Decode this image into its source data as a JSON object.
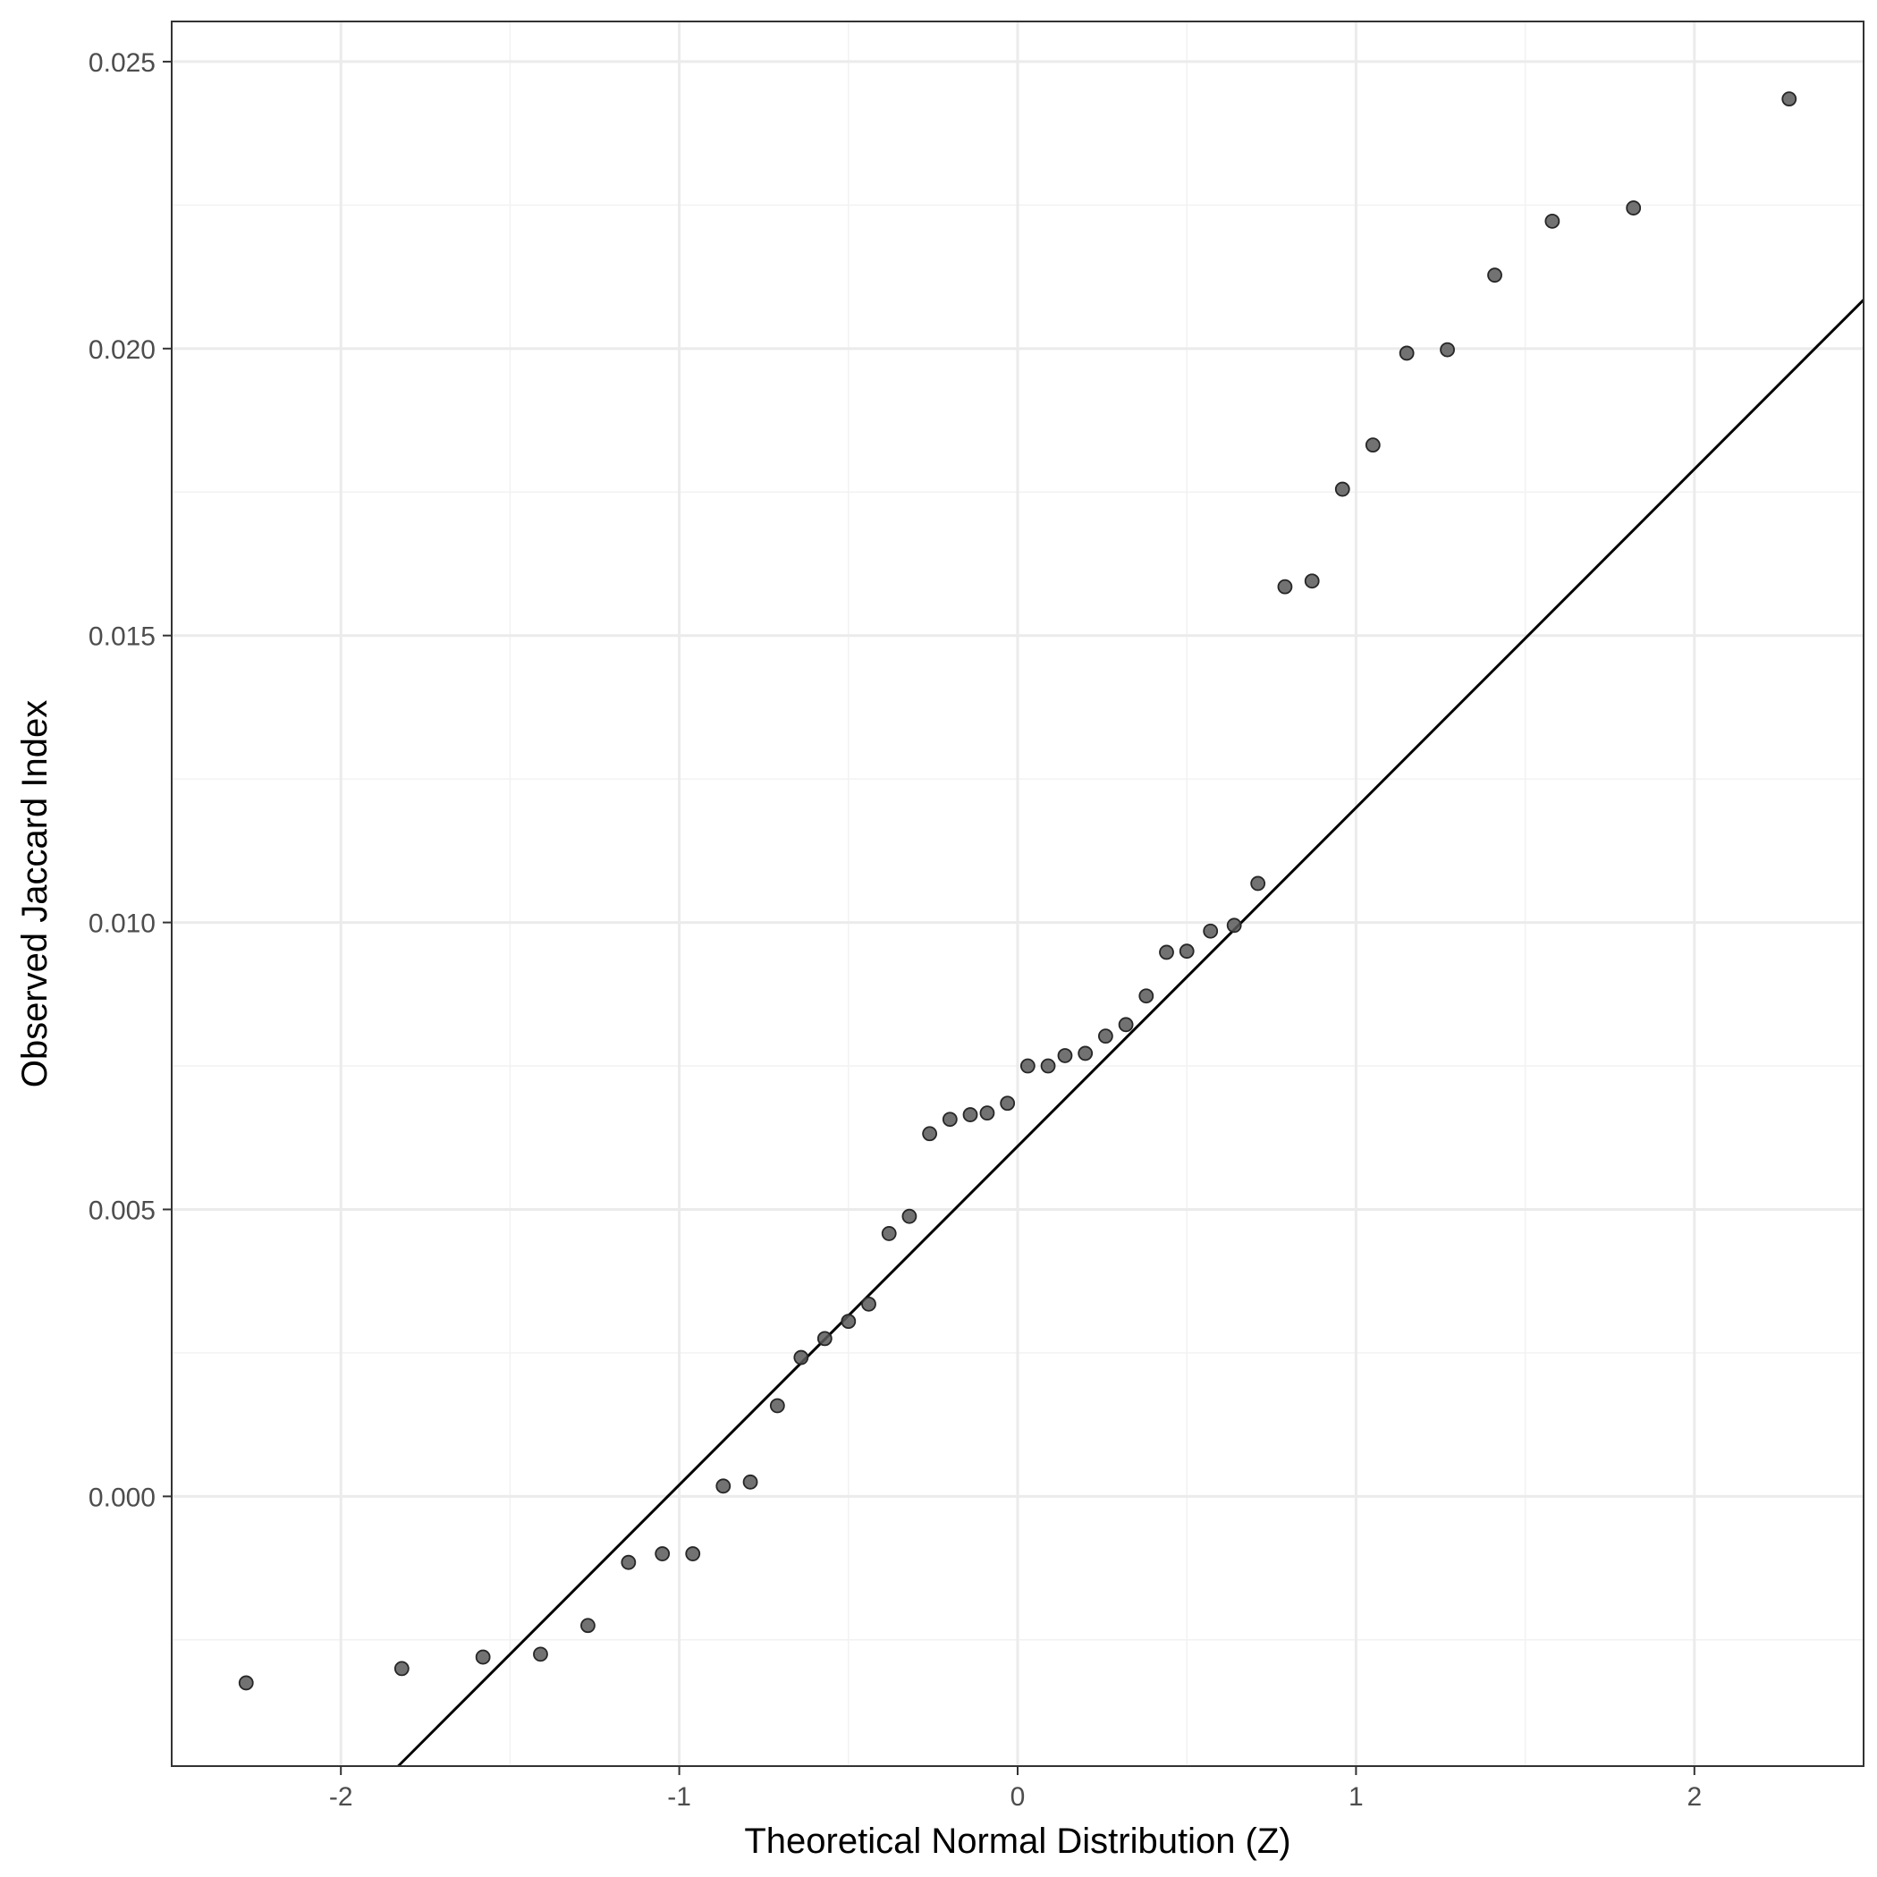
{
  "chart_data": {
    "type": "scatter",
    "title": "",
    "xlabel": "Theoretical Normal Distribution (Z)",
    "ylabel": "Observed Jaccard Index",
    "xlim": [
      -2.5,
      2.5
    ],
    "ylim": [
      -0.0047,
      0.0257
    ],
    "x_ticks": [
      -2,
      -1,
      0,
      1,
      2
    ],
    "x_tick_labels": [
      "-2",
      "-1",
      "0",
      "1",
      "2"
    ],
    "y_ticks": [
      0.0,
      0.005,
      0.01,
      0.015,
      0.02,
      0.025
    ],
    "y_tick_labels": [
      "0.000",
      "0.005",
      "0.010",
      "0.015",
      "0.020",
      "0.025"
    ],
    "grid": true,
    "legend": "none",
    "point_color": "#595959",
    "line_color": "#000000",
    "reference_line": {
      "intercept": 0.0061,
      "slope": 0.0059
    },
    "x": [
      -2.28,
      -1.82,
      -1.58,
      -1.41,
      -1.27,
      -1.15,
      -1.05,
      -0.96,
      -0.87,
      -0.79,
      -0.71,
      -0.64,
      -0.57,
      -0.5,
      -0.44,
      -0.38,
      -0.32,
      -0.26,
      -0.2,
      -0.14,
      -0.09,
      -0.03,
      0.03,
      0.09,
      0.14,
      0.2,
      0.26,
      0.32,
      0.38,
      0.44,
      0.5,
      0.57,
      0.64,
      0.71,
      0.79,
      0.87,
      0.96,
      1.05,
      1.15,
      1.27,
      1.41,
      1.58,
      1.82,
      2.28
    ],
    "y": [
      -0.00325,
      -0.003,
      -0.0028,
      -0.00275,
      -0.00225,
      -0.00115,
      -0.001,
      -0.001,
      0.00018,
      0.00025,
      0.00158,
      0.00242,
      0.00275,
      0.00305,
      0.00335,
      0.00458,
      0.00488,
      0.00632,
      0.00657,
      0.00665,
      0.00668,
      0.00685,
      0.0075,
      0.0075,
      0.00768,
      0.00772,
      0.00802,
      0.00822,
      0.00872,
      0.00948,
      0.0095,
      0.00985,
      0.00995,
      0.01068,
      0.01585,
      0.01595,
      0.01755,
      0.01832,
      0.01992,
      0.01998,
      0.02128,
      0.02222,
      0.02245,
      0.02435
    ]
  }
}
